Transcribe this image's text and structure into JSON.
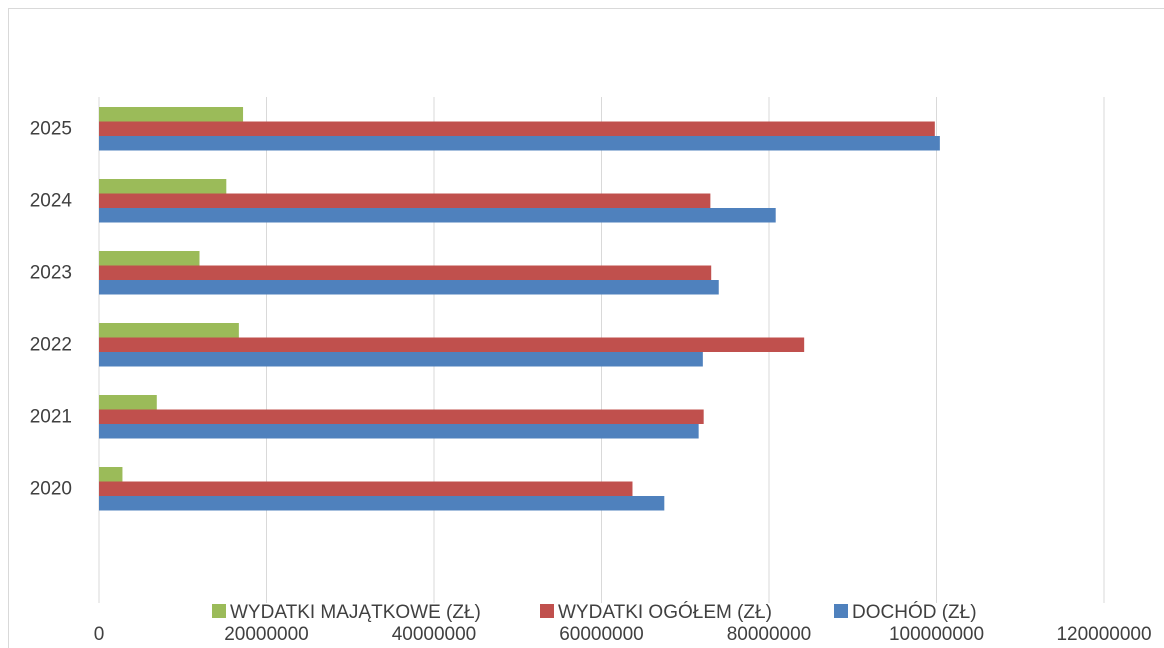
{
  "chart_data": {
    "type": "bar",
    "orientation": "horizontal",
    "title": "",
    "xlabel": "",
    "ylabel": "",
    "categories": [
      "2020",
      "2021",
      "2022",
      "2023",
      "2024",
      "2025"
    ],
    "xlim": [
      0,
      120000000
    ],
    "x_ticks": [
      "0",
      "20000000",
      "40000000",
      "60000000",
      "80000000",
      "100000000",
      "120000000"
    ],
    "grid": true,
    "legend_position": "bottom",
    "series": [
      {
        "name": "WYDATKI MAJĄTKOWE (ZŁ)",
        "color": "#9bbb59",
        "values": [
          2800000,
          6900000,
          16700000,
          12000000,
          15200000,
          17200000
        ]
      },
      {
        "name": "WYDATKI OGÓŁEM (ZŁ)",
        "color": "#c0504d",
        "values": [
          63700000,
          72200000,
          84200000,
          73100000,
          73000000,
          99800000
        ]
      },
      {
        "name": "DOCHÓD (ZŁ)",
        "color": "#4f81bd",
        "values": [
          67500000,
          71600000,
          72100000,
          74000000,
          80800000,
          100400000
        ]
      }
    ]
  }
}
